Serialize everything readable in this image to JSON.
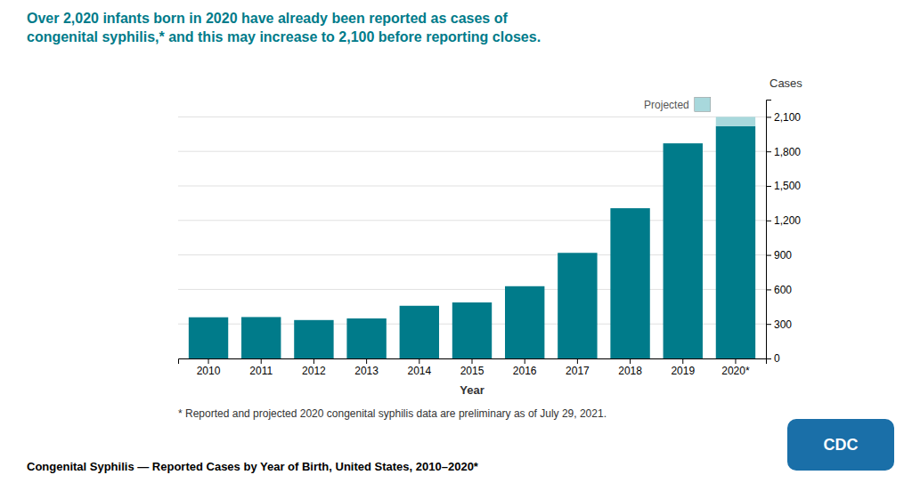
{
  "chart_data": {
    "type": "bar",
    "title": "Over 2,020 infants born in 2020 have already been reported as cases of\ncongenital syphilis,* and this may increase to 2,100 before reporting closes.",
    "x_label": "Year",
    "y_label": "Cases",
    "categories": [
      "2010",
      "2011",
      "2012",
      "2013",
      "2014",
      "2015",
      "2016",
      "2017",
      "2018",
      "2019",
      "2020*"
    ],
    "series": [
      {
        "color": "#007B8A",
        "values": [
          358,
          360,
          334,
          348,
          458,
          487,
          628,
          918,
          1306,
          1870,
          2020
        ]
      },
      {
        "name": "Projected",
        "color": "#A8D8DC",
        "values": [
          null,
          null,
          null,
          null,
          null,
          null,
          null,
          null,
          null,
          null,
          80
        ]
      }
    ],
    "stacked": true,
    "ylim": [
      0,
      2250
    ],
    "yticks": [
      0,
      300,
      600,
      900,
      {
        "value": 1200,
        "label": "1,200"
      },
      {
        "value": 1500,
        "label": "1,500"
      },
      {
        "value": 1800,
        "label": "1,800"
      },
      {
        "value": 2100,
        "label": "2,100"
      }
    ],
    "grid": true,
    "annotations": [
      "* Reported and projected 2020 congenital syphilis data are preliminary as of July 29, 2021.",
      "Congenital Syphilis — Reported Cases by Year of Birth, United States, 2010–2020*",
      "CDC"
    ]
  }
}
